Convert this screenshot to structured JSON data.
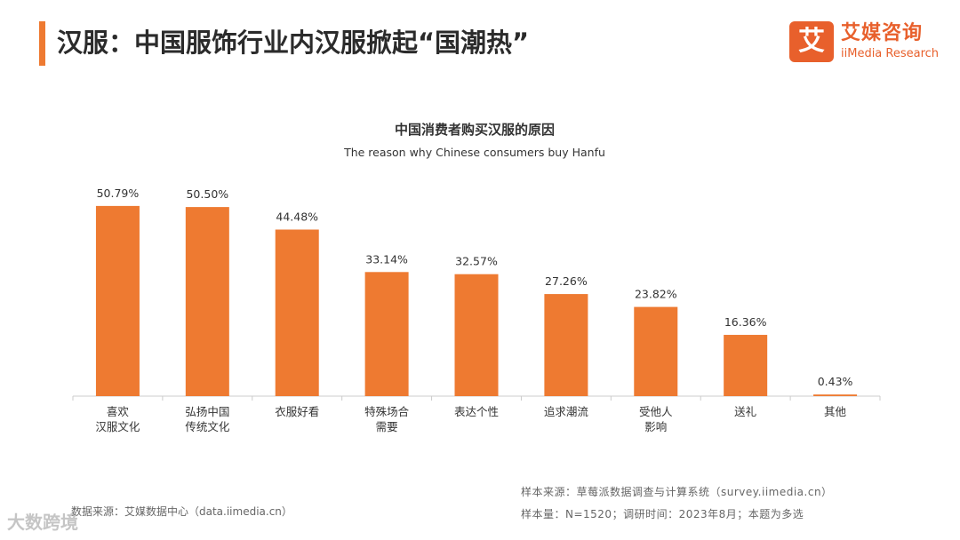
{
  "header": {
    "title": "汉服：中国服饰行业内汉服掀起“国潮热”",
    "accent_color": "#EE7A31"
  },
  "brand": {
    "logo_char": "艾",
    "name_cn": "艾媒咨询",
    "name_en": "iiMedia Research",
    "color": "#E8602C"
  },
  "chart_data": {
    "type": "bar",
    "title": "中国消费者购买汉服的原因",
    "subtitle": "The reason why Chinese consumers buy Hanfu",
    "categories": [
      [
        "喜欢",
        "汉服文化"
      ],
      [
        "弘扬中国",
        "传统文化"
      ],
      [
        "衣服好看"
      ],
      [
        "特殊场合",
        "需要"
      ],
      [
        "表达个性"
      ],
      [
        "追求潮流"
      ],
      [
        "受他人",
        "影响"
      ],
      [
        "送礼"
      ],
      [
        "其他"
      ]
    ],
    "values": [
      50.79,
      50.5,
      44.48,
      33.14,
      32.57,
      27.26,
      23.82,
      16.36,
      0.43
    ],
    "value_labels": [
      "50.79%",
      "50.50%",
      "44.48%",
      "33.14%",
      "32.57%",
      "27.26%",
      "23.82%",
      "16.36%",
      "0.43%"
    ],
    "ylim": [
      0,
      51
    ],
    "unit": "%",
    "grid": false,
    "bar_color": "#EE7A31"
  },
  "footer": {
    "source": "数据来源：艾媒数据中心（data.iimedia.cn）",
    "sample_source": "样本来源：草莓派数据调查与计算系统（survey.iimedia.cn）",
    "sample_info": "样本量：N=1520；调研时间：2023年8月；本题为多选"
  },
  "watermark": "大数跨境"
}
